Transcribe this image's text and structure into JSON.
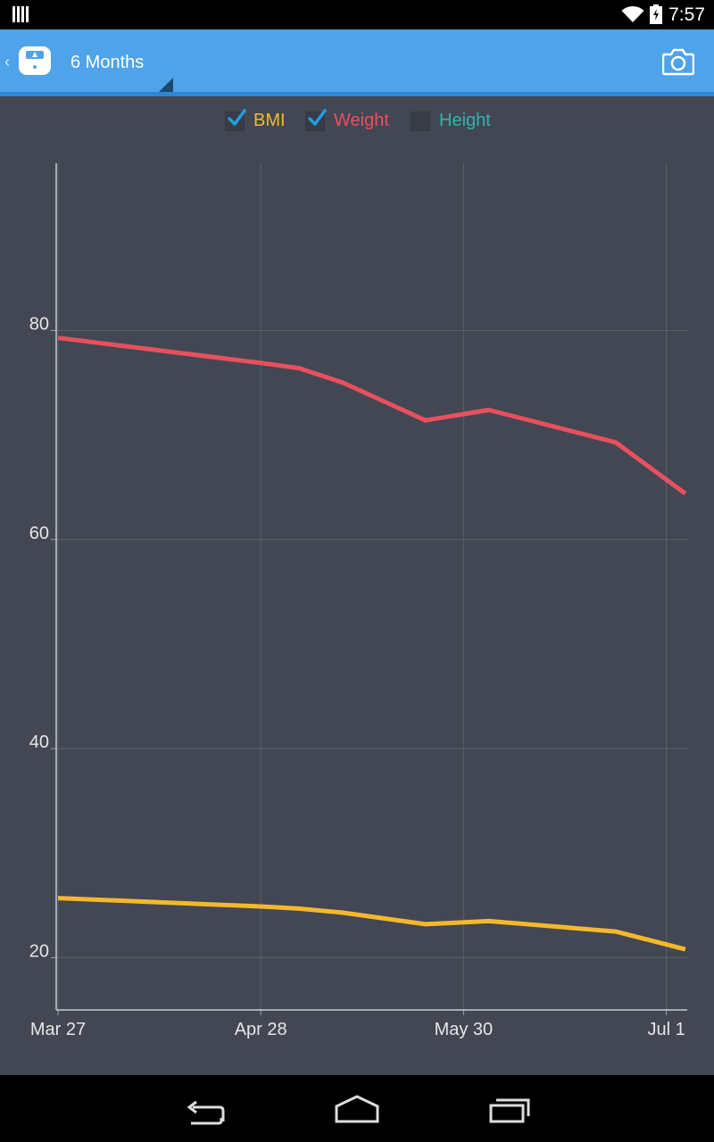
{
  "status_bar": {
    "time": "7:57",
    "icons": [
      "notification-bars-icon",
      "wifi-icon",
      "battery-charging-icon"
    ]
  },
  "action_bar": {
    "title": "6 Months",
    "icons": [
      "up-chevron-icon",
      "scale-app-icon",
      "spinner-triangle-icon",
      "camera-icon"
    ],
    "colors": {
      "background": "#4fa3e8",
      "shadow": "#2f86d3"
    }
  },
  "legend": {
    "items": [
      {
        "label": "BMI",
        "checked": true,
        "color": "#f4b82c"
      },
      {
        "label": "Weight",
        "checked": true,
        "color": "#e8505f"
      },
      {
        "label": "Height",
        "checked": false,
        "color": "#34b3ad"
      }
    ],
    "check_color": "#1e9fde"
  },
  "chart_data": {
    "type": "line",
    "x_ticks": [
      "Mar 27",
      "Apr 28",
      "May 30",
      "Jul 1"
    ],
    "y_ticks": [
      "20",
      "40",
      "60",
      "80"
    ],
    "ylim": [
      15,
      96
    ],
    "grid": true,
    "series": [
      {
        "name": "Weight",
        "color": "#e8505f",
        "x": [
          "2014-03-27",
          "2014-04-28",
          "2014-05-04",
          "2014-05-11",
          "2014-05-24",
          "2014-06-03",
          "2014-06-23",
          "2014-07-04"
        ],
        "y": [
          79.3,
          76.9,
          76.4,
          75.0,
          71.4,
          72.4,
          69.3,
          64.4
        ]
      },
      {
        "name": "BMI",
        "color": "#f4b82c",
        "x": [
          "2014-03-27",
          "2014-04-28",
          "2014-05-04",
          "2014-05-11",
          "2014-05-24",
          "2014-06-03",
          "2014-06-23",
          "2014-07-04"
        ],
        "y": [
          25.7,
          24.9,
          24.7,
          24.3,
          23.2,
          23.5,
          22.5,
          20.8
        ]
      }
    ]
  },
  "nav_bar": {
    "buttons": [
      "back-icon",
      "home-icon",
      "recent-apps-icon"
    ]
  }
}
